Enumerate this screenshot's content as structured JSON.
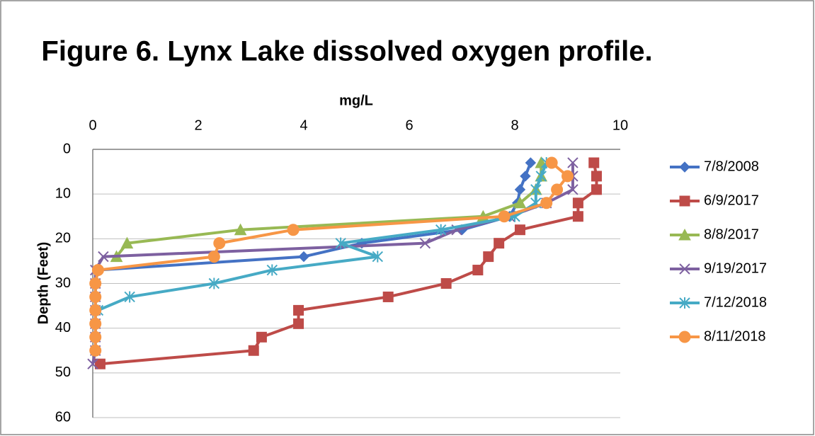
{
  "chart_data": {
    "type": "line",
    "title": "Figure 6. Lynx Lake dissolved oxygen profile.",
    "x_label": "mg/L",
    "y_label": "Depth (Feet)",
    "xlim": [
      0,
      10
    ],
    "xticks": [
      0,
      2,
      4,
      6,
      8,
      10
    ],
    "x_axis_position": "top",
    "ylim": [
      0,
      60
    ],
    "yticks": [
      0,
      10,
      20,
      30,
      40,
      50,
      60
    ],
    "y_inverted": true,
    "grid": true,
    "legend": "right",
    "series": [
      {
        "name": "7/8/2008",
        "color": "#4472c4",
        "marker": "diamond",
        "x": [
          8.3,
          8.2,
          8.1,
          8.05,
          7.9,
          7.0,
          5.1,
          4.0,
          0.1,
          0.05,
          0.05,
          0.05,
          0.05,
          0.05,
          0.05
        ],
        "values": [
          3,
          6,
          9,
          12,
          15,
          18,
          21,
          24,
          27,
          30,
          33,
          36,
          39,
          42,
          45
        ]
      },
      {
        "name": "6/9/2017",
        "color": "#be4b48",
        "marker": "square",
        "x": [
          9.5,
          9.55,
          9.55,
          9.2,
          9.2,
          8.1,
          7.7,
          7.5,
          7.3,
          6.7,
          5.6,
          3.9,
          3.9,
          3.2,
          3.05,
          0.14
        ],
        "values": [
          3,
          6,
          9,
          12,
          15,
          18,
          21,
          24,
          27,
          30,
          33,
          36,
          39,
          42,
          45,
          48
        ]
      },
      {
        "name": "8/8/2017",
        "color": "#98b954",
        "marker": "triangle",
        "x": [
          8.5,
          8.5,
          8.4,
          8.1,
          7.4,
          2.8,
          0.65,
          0.45
        ],
        "values": [
          3,
          6,
          9,
          12,
          15,
          18,
          21,
          24
        ]
      },
      {
        "name": "9/19/2017",
        "color": "#7d60a0",
        "marker": "x",
        "x": [
          9.1,
          9.1,
          9.1,
          8.6,
          7.9,
          6.9,
          6.3,
          0.2,
          0.05,
          0.05,
          0.05,
          0.05,
          0.05,
          0.05,
          0.05,
          0
        ],
        "values": [
          3,
          6,
          9,
          12,
          15,
          18,
          21,
          24,
          27,
          30,
          33,
          36,
          39,
          42,
          45,
          48
        ]
      },
      {
        "name": "7/12/2018",
        "color": "#46aac5",
        "marker": "star",
        "x": [
          8.6,
          8.5,
          8.4,
          8.4,
          8.0,
          6.6,
          4.7,
          5.4,
          3.4,
          2.3,
          0.7,
          0.1
        ],
        "values": [
          3,
          6,
          9,
          12,
          15,
          18,
          21,
          24,
          27,
          30,
          33,
          36
        ]
      },
      {
        "name": "8/11/2018",
        "color": "#f79646",
        "marker": "circle",
        "x": [
          8.7,
          9.0,
          8.8,
          8.6,
          7.8,
          3.8,
          2.4,
          2.3,
          0.1,
          0.05,
          0.05,
          0.05,
          0.05,
          0.05,
          0.05
        ],
        "values": [
          3,
          6,
          9,
          12,
          15,
          18,
          21,
          24,
          27,
          30,
          33,
          36,
          39,
          42,
          45
        ]
      }
    ]
  }
}
